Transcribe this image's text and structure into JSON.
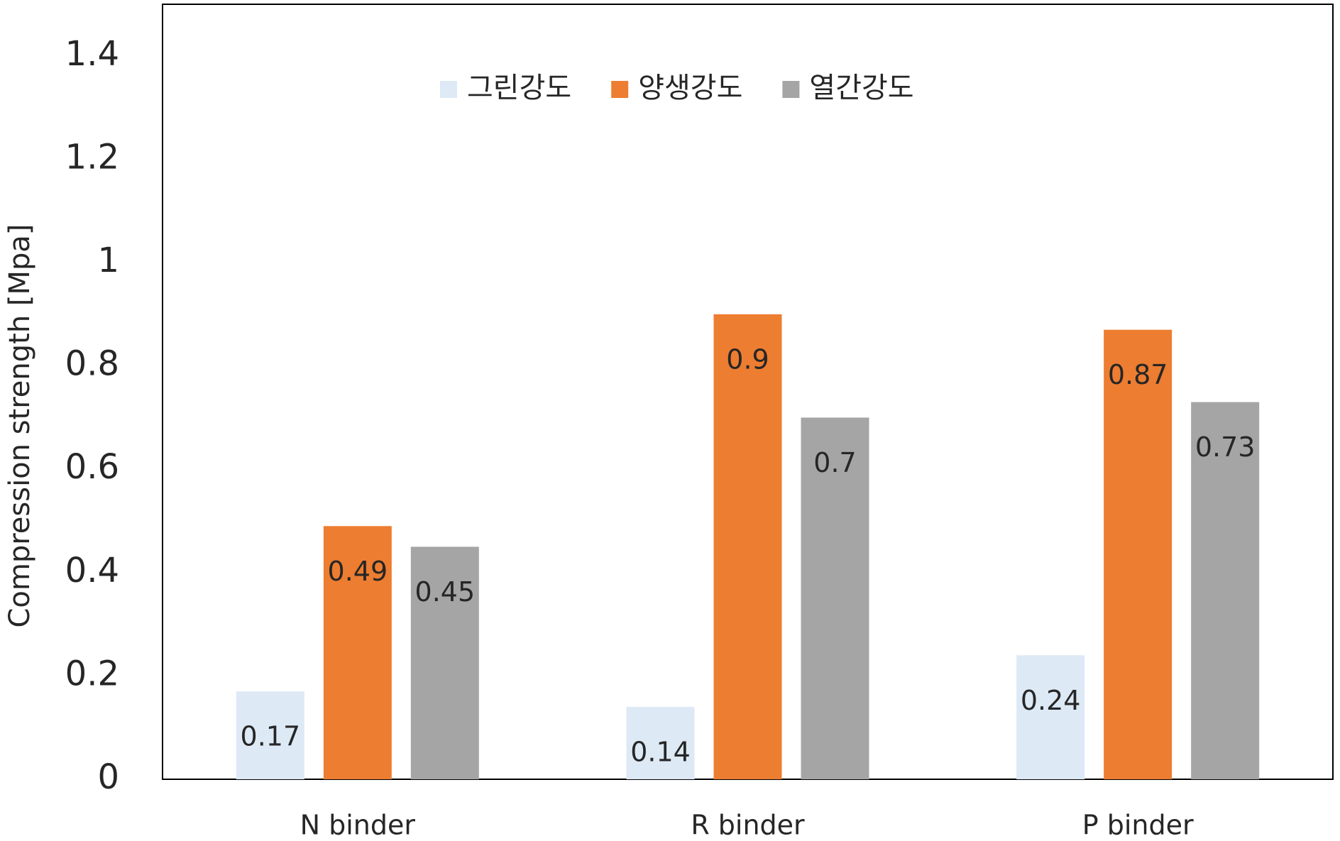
{
  "chart_data": {
    "type": "bar",
    "y_label": "Compression strength [Mpa]",
    "categories": [
      "N binder",
      "R binder",
      "P binder"
    ],
    "series": [
      {
        "name": "그린강도",
        "color": "#dde9f5",
        "values": [
          0.17,
          0.14,
          0.24
        ]
      },
      {
        "name": "양생강도",
        "color": "#ed7d31",
        "values": [
          0.49,
          0.9,
          0.87
        ]
      },
      {
        "name": "열간강도",
        "color": "#a5a5a5",
        "values": [
          0.45,
          0.7,
          0.73
        ]
      }
    ],
    "ylim": [
      0,
      1.5
    ],
    "yticks": [
      0,
      0.2,
      0.4,
      0.6,
      0.8,
      1,
      1.2,
      1.4
    ],
    "legend": "top",
    "grid": false
  }
}
